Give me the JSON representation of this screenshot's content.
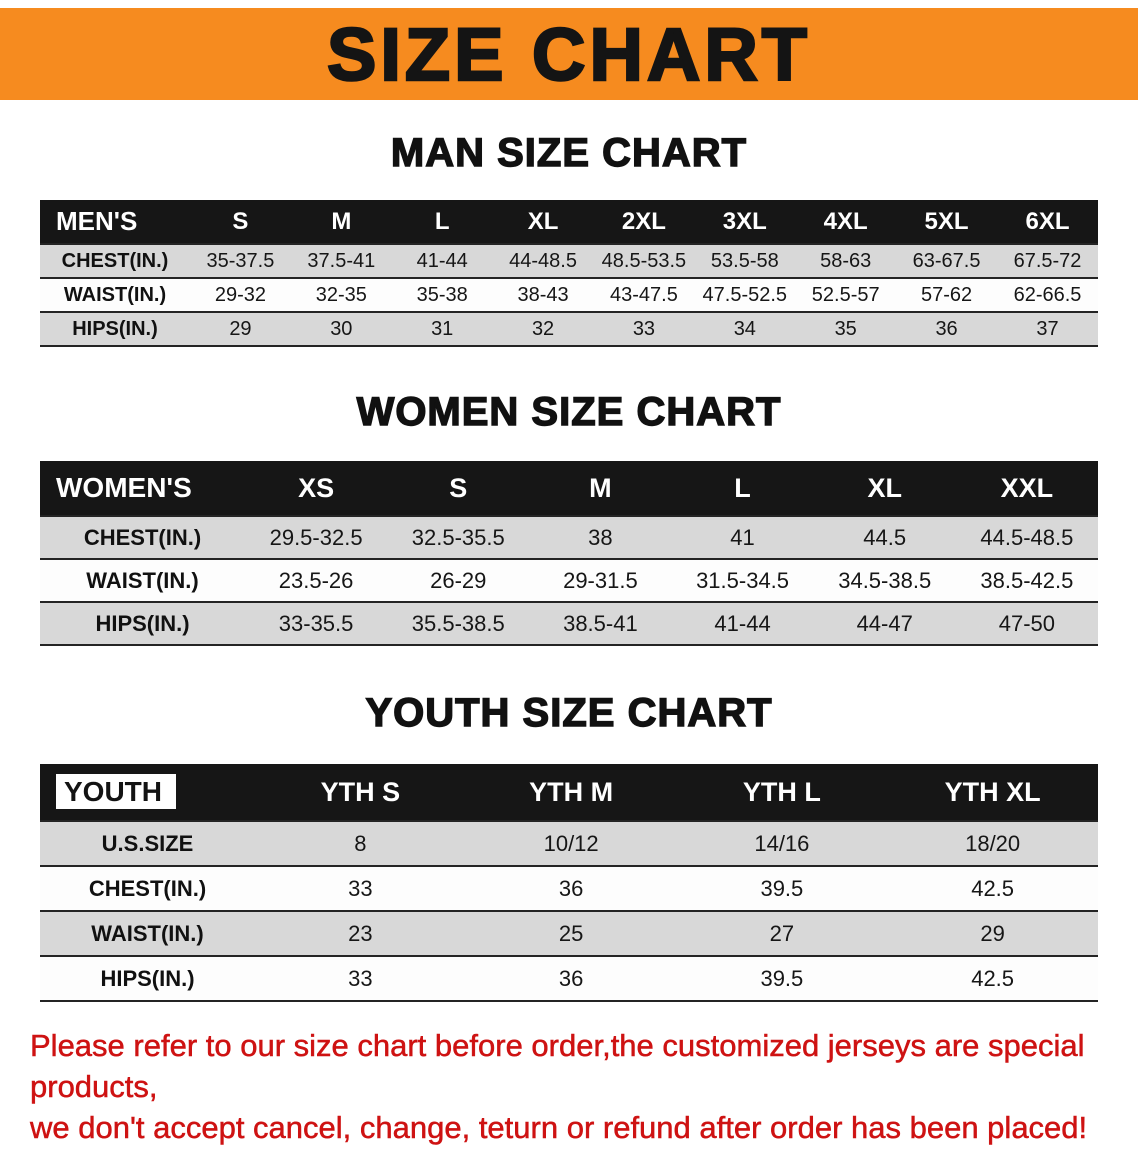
{
  "banner": {
    "title": "SIZE CHART",
    "bg_color": "#F68B1F",
    "text_color": "#141414"
  },
  "sections": [
    {
      "id": "men",
      "title": "MAN SIZE CHART",
      "table": {
        "header": [
          "MEN'S",
          "S",
          "M",
          "L",
          "XL",
          "2XL",
          "3XL",
          "4XL",
          "5XL",
          "6XL"
        ],
        "rows": [
          {
            "label": "CHEST(IN.)",
            "values": [
              "35-37.5",
              "37.5-41",
              "41-44",
              "44-48.5",
              "48.5-53.5",
              "53.5-58",
              "58-63",
              "63-67.5",
              "67.5-72"
            ]
          },
          {
            "label": "WAIST(IN.)",
            "values": [
              "29-32",
              "32-35",
              "35-38",
              "38-43",
              "43-47.5",
              "47.5-52.5",
              "52.5-57",
              "57-62",
              "62-66.5"
            ]
          },
          {
            "label": "HIPS(IN.)",
            "values": [
              "29",
              "30",
              "31",
              "32",
              "33",
              "34",
              "35",
              "36",
              "37"
            ]
          }
        ]
      }
    },
    {
      "id": "women",
      "title": "WOMEN SIZE CHART",
      "table": {
        "header": [
          "WOMEN'S",
          "XS",
          "S",
          "M",
          "L",
          "XL",
          "XXL"
        ],
        "rows": [
          {
            "label": "CHEST(IN.)",
            "values": [
              "29.5-32.5",
              "32.5-35.5",
              "38",
              "41",
              "44.5",
              "44.5-48.5"
            ]
          },
          {
            "label": "WAIST(IN.)",
            "values": [
              "23.5-26",
              "26-29",
              "29-31.5",
              "31.5-34.5",
              "34.5-38.5",
              "38.5-42.5"
            ]
          },
          {
            "label": "HIPS(IN.)",
            "values": [
              "33-35.5",
              "35.5-38.5",
              "38.5-41",
              "41-44",
              "44-47",
              "47-50"
            ]
          }
        ]
      }
    },
    {
      "id": "youth",
      "title": "YOUTH SIZE CHART",
      "table": {
        "header": [
          "YOUTH",
          "YTH S",
          "YTH M",
          "YTH L",
          "YTH XL"
        ],
        "rows": [
          {
            "label": "U.S.SIZE",
            "values": [
              "8",
              "10/12",
              "14/16",
              "18/20"
            ]
          },
          {
            "label": "CHEST(IN.)",
            "values": [
              "33",
              "36",
              "39.5",
              "42.5"
            ]
          },
          {
            "label": "WAIST(IN.)",
            "values": [
              "23",
              "25",
              "27",
              "29"
            ]
          },
          {
            "label": "HIPS(IN.)",
            "values": [
              "33",
              "36",
              "39.5",
              "42.5"
            ]
          }
        ]
      }
    }
  ],
  "disclaimer": {
    "color": "#CE1212",
    "lines": [
      "Please refer to our size chart before order,the customized jerseys are special products,",
      "we don't accept cancel, change, teturn or refund after order has been placed!"
    ]
  }
}
